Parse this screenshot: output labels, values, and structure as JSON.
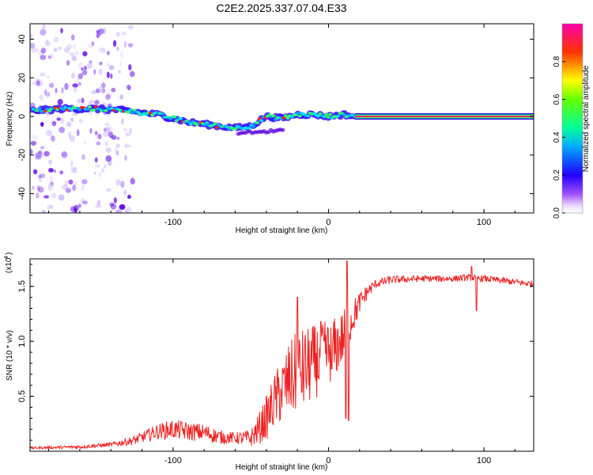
{
  "title": "C2E2.2025.337.07.04.E33",
  "chart_data": [
    {
      "type": "heatmap",
      "name": "spectrogram",
      "xlabel": "Height of straight line (km)",
      "ylabel": "Frequency (Hz)",
      "xlim": [
        -192,
        132
      ],
      "ylim": [
        -50,
        48
      ],
      "xticks": [
        -100,
        0,
        100
      ],
      "yticks": [
        -40,
        -20,
        0,
        20,
        40
      ],
      "colorbar": {
        "label": "Normalized spectral amplitude",
        "range": [
          0,
          1
        ],
        "ticks": [
          0.0,
          0.2,
          0.4,
          0.6,
          0.8
        ],
        "colormap": [
          "#ffffff",
          "#cc99ff",
          "#6600ff",
          "#0000ff",
          "#00ccff",
          "#00ff66",
          "#66ff00",
          "#ffff00",
          "#ff9900",
          "#ff0000",
          "#ff00aa"
        ]
      },
      "ridge": {
        "description_points_x": [
          -190,
          -170,
          -150,
          -130,
          -110,
          -90,
          -70,
          -60,
          -50,
          -40,
          -30,
          -20,
          -10,
          0,
          10,
          17,
          132
        ],
        "description_points_y": [
          3,
          4,
          4,
          3,
          1,
          -3,
          -5,
          -6,
          -5,
          0,
          -1,
          1,
          1,
          0,
          1,
          0,
          0
        ],
        "steady_from_x": 17,
        "steady_value": 0
      }
    },
    {
      "type": "line",
      "name": "snr",
      "xlabel": "Height of straight line (km)",
      "ylabel": "SNR (10 * v/v)",
      "exponent_label": "(x10",
      "exponent_power": "4",
      "exponent_close": ")",
      "xlim": [
        -192,
        132
      ],
      "ylim": [
        0,
        1.75
      ],
      "xticks": [
        -100,
        0,
        100
      ],
      "yticks": [
        0.5,
        1.0,
        1.5
      ],
      "ytick_labels": [
        "0.5",
        "1.0",
        "1.5"
      ],
      "color": "#ee2222",
      "envelope_x": [
        -192,
        -160,
        -140,
        -125,
        -110,
        -100,
        -90,
        -80,
        -70,
        -60,
        -50,
        -45,
        -40,
        -35,
        -30,
        -25,
        -20,
        -15,
        -10,
        -5,
        0,
        5,
        10,
        15,
        20,
        25,
        30,
        40,
        60,
        80,
        90,
        100,
        132
      ],
      "envelope_y": [
        0.03,
        0.04,
        0.06,
        0.1,
        0.18,
        0.2,
        0.18,
        0.17,
        0.13,
        0.12,
        0.12,
        0.2,
        0.3,
        0.45,
        0.55,
        0.65,
        0.7,
        0.75,
        0.8,
        0.85,
        0.9,
        0.95,
        1.05,
        1.2,
        1.35,
        1.45,
        1.52,
        1.56,
        1.57,
        1.57,
        1.58,
        1.57,
        1.52
      ],
      "noise_amplitude_x": [
        -192,
        -140,
        -120,
        -100,
        -80,
        -60,
        -50,
        -40,
        -30,
        -20,
        -10,
        0,
        10,
        20,
        30,
        60,
        132
      ],
      "noise_amplitude_y": [
        0.01,
        0.02,
        0.05,
        0.09,
        0.08,
        0.05,
        0.08,
        0.2,
        0.3,
        0.4,
        0.35,
        0.3,
        0.25,
        0.1,
        0.04,
        0.03,
        0.03
      ],
      "dips": [
        {
          "x": 11,
          "y": 0.3
        },
        {
          "x": 13,
          "y": 0.28
        },
        {
          "x": 2,
          "y": 0.75
        },
        {
          "x": 95,
          "y": 1.28
        }
      ],
      "spikes": [
        {
          "x": 12,
          "y": 1.73
        },
        {
          "x": -20,
          "y": 1.4
        },
        {
          "x": -5,
          "y": 1.18
        },
        {
          "x": 92,
          "y": 1.68
        }
      ]
    }
  ]
}
